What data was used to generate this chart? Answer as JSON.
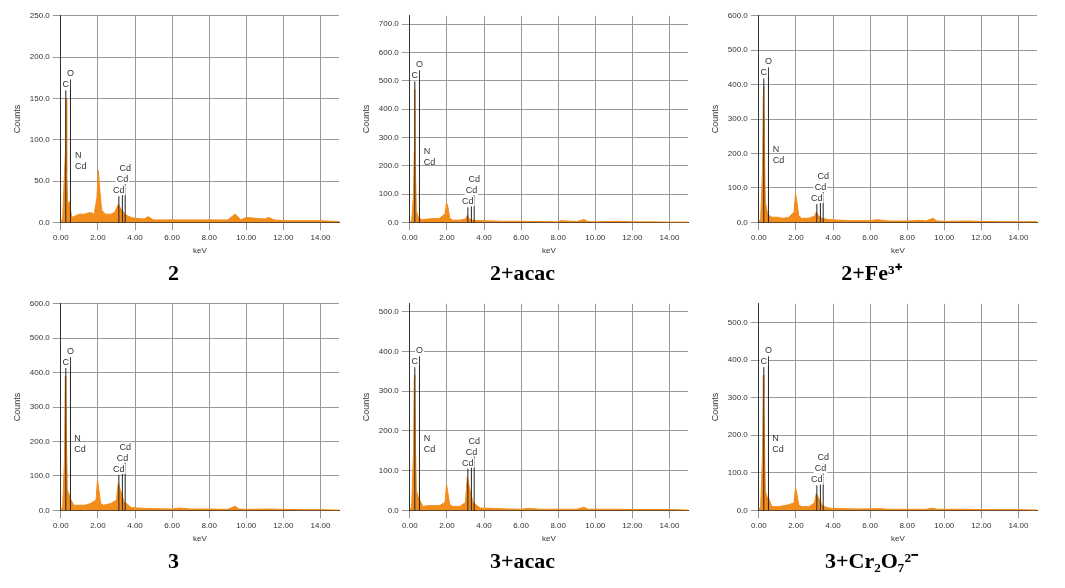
{
  "chart_data": [
    {
      "type": "area",
      "title": "2",
      "xlabel": "keV",
      "ylabel": "Counts",
      "color": "#f28c1a",
      "grid": true,
      "xlim": [
        0,
        15
      ],
      "ylim": [
        0,
        250
      ],
      "xticks": [
        {
          "value": 0,
          "label": "0.00"
        },
        {
          "value": 2,
          "label": "2.00"
        },
        {
          "value": 4,
          "label": "4.00"
        },
        {
          "value": 6,
          "label": "6.00"
        },
        {
          "value": 8,
          "label": "8.00"
        },
        {
          "value": 10,
          "label": "10.00"
        },
        {
          "value": 12,
          "label": "12.00"
        },
        {
          "value": 14,
          "label": "14.00"
        }
      ],
      "yticks": [
        {
          "value": 0,
          "label": "0.0"
        },
        {
          "value": 50,
          "label": "50.0"
        },
        {
          "value": 100,
          "label": "100.0"
        },
        {
          "value": 150,
          "label": "150.0"
        },
        {
          "value": 200,
          "label": "200.0"
        },
        {
          "value": 250,
          "label": "250.0"
        }
      ],
      "x": [
        0,
        0.1,
        0.2,
        0.25,
        0.28,
        0.32,
        0.38,
        0.45,
        0.52,
        0.6,
        0.8,
        1.0,
        1.3,
        1.6,
        1.8,
        1.95,
        2.02,
        2.1,
        2.2,
        2.4,
        2.7,
        2.9,
        3.1,
        3.2,
        3.3,
        3.45,
        3.6,
        3.8,
        4.0,
        4.5,
        4.7,
        5.0,
        6.0,
        7.0,
        8.0,
        9.0,
        9.4,
        9.5,
        9.7,
        10.0,
        11.0,
        11.2,
        11.5,
        12.0,
        13.0,
        14.0,
        15.0
      ],
      "values": [
        0,
        5,
        60,
        85,
        150,
        60,
        20,
        25,
        15,
        6,
        8,
        10,
        10,
        12,
        10,
        30,
        63,
        40,
        15,
        10,
        10,
        12,
        22,
        18,
        15,
        10,
        8,
        6,
        5,
        4,
        7,
        3,
        3,
        3,
        3,
        3,
        10,
        8,
        3,
        6,
        4,
        6,
        3,
        2,
        2,
        2,
        1
      ],
      "annotations": [
        "N",
        "Cd"
      ],
      "ref_lines": [
        {
          "axis": "x",
          "value": 0.27,
          "label": "C"
        },
        {
          "axis": "x",
          "value": 0.52,
          "label": "O"
        },
        {
          "axis": "x",
          "value": 3.13,
          "label": "Cd"
        },
        {
          "axis": "x",
          "value": 3.32,
          "label": "Cd"
        },
        {
          "axis": "x",
          "value": 3.47,
          "label": "Cd"
        }
      ]
    },
    {
      "type": "area",
      "title": "2+acac",
      "xlabel": "keV",
      "ylabel": "Counts",
      "color": "#f28c1a",
      "grid": true,
      "xlim": [
        0,
        15
      ],
      "ylim": [
        0,
        730
      ],
      "xticks": [
        {
          "value": 0,
          "label": "0.00"
        },
        {
          "value": 2,
          "label": "2.00"
        },
        {
          "value": 4,
          "label": "4.00"
        },
        {
          "value": 6,
          "label": "6.00"
        },
        {
          "value": 8,
          "label": "8.00"
        },
        {
          "value": 10,
          "label": "10.00"
        },
        {
          "value": 12,
          "label": "12.00"
        },
        {
          "value": 14,
          "label": "14.00"
        }
      ],
      "yticks": [
        {
          "value": 0,
          "label": "0.0"
        },
        {
          "value": 100,
          "label": "100.0"
        },
        {
          "value": 200,
          "label": "200.0"
        },
        {
          "value": 300,
          "label": "300.0"
        },
        {
          "value": 400,
          "label": "400.0"
        },
        {
          "value": 500,
          "label": "500.0"
        },
        {
          "value": 600,
          "label": "600.0"
        },
        {
          "value": 700,
          "label": "700.0"
        }
      ],
      "x": [
        0,
        0.1,
        0.2,
        0.24,
        0.27,
        0.3,
        0.35,
        0.45,
        0.55,
        0.7,
        1.0,
        1.3,
        1.6,
        1.9,
        1.98,
        2.05,
        2.15,
        2.3,
        2.7,
        3.0,
        3.1,
        3.2,
        3.4,
        3.8,
        4.5,
        5.0,
        6.0,
        7.0,
        8.0,
        8.1,
        9.0,
        9.4,
        9.6,
        10.0,
        11.2,
        12.0,
        13.0,
        14.0,
        15.0
      ],
      "values": [
        0,
        5,
        100,
        250,
        470,
        200,
        40,
        20,
        12,
        10,
        12,
        14,
        14,
        30,
        70,
        55,
        15,
        8,
        8,
        12,
        25,
        12,
        8,
        6,
        5,
        4,
        4,
        3,
        2,
        6,
        3,
        10,
        3,
        2,
        4,
        2,
        2,
        1,
        1
      ],
      "annotations": [
        "N",
        "Cd"
      ],
      "ref_lines": [
        {
          "axis": "x",
          "value": 0.27,
          "label": "C"
        },
        {
          "axis": "x",
          "value": 0.52,
          "label": "O"
        },
        {
          "axis": "x",
          "value": 3.13,
          "label": "Cd"
        },
        {
          "axis": "x",
          "value": 3.32,
          "label": "Cd"
        },
        {
          "axis": "x",
          "value": 3.47,
          "label": "Cd"
        }
      ]
    },
    {
      "type": "area",
      "title": "2+Fe³⁺",
      "xlabel": "keV",
      "ylabel": "Counts",
      "color": "#f28c1a",
      "grid": true,
      "xlim": [
        0,
        15
      ],
      "ylim": [
        0,
        600
      ],
      "xticks": [
        {
          "value": 0,
          "label": "0.00"
        },
        {
          "value": 2,
          "label": "2.00"
        },
        {
          "value": 4,
          "label": "4.00"
        },
        {
          "value": 6,
          "label": "6.00"
        },
        {
          "value": 8,
          "label": "8.00"
        },
        {
          "value": 10,
          "label": "10.00"
        },
        {
          "value": 12,
          "label": "12.00"
        },
        {
          "value": 14,
          "label": "14.00"
        }
      ],
      "yticks": [
        {
          "value": 0,
          "label": "0.0"
        },
        {
          "value": 100,
          "label": "100.0"
        },
        {
          "value": 200,
          "label": "200.0"
        },
        {
          "value": 300,
          "label": "300.0"
        },
        {
          "value": 400,
          "label": "400.0"
        },
        {
          "value": 500,
          "label": "500.0"
        },
        {
          "value": 600,
          "label": "600.0"
        }
      ],
      "x": [
        0,
        0.1,
        0.2,
        0.24,
        0.27,
        0.3,
        0.35,
        0.45,
        0.55,
        0.7,
        1.0,
        1.3,
        1.6,
        1.9,
        1.98,
        2.05,
        2.15,
        2.3,
        2.7,
        3.0,
        3.1,
        3.2,
        3.4,
        3.8,
        4.5,
        5.0,
        6.0,
        6.4,
        7.0,
        8.0,
        8.7,
        9.0,
        9.4,
        9.6,
        10.0,
        11.2,
        12.0,
        13.0,
        14.0,
        15.0
      ],
      "values": [
        0,
        10,
        150,
        370,
        395,
        230,
        60,
        30,
        20,
        15,
        15,
        12,
        14,
        30,
        85,
        60,
        20,
        12,
        12,
        18,
        30,
        20,
        12,
        8,
        6,
        5,
        5,
        8,
        4,
        4,
        6,
        4,
        12,
        4,
        3,
        4,
        3,
        2,
        2,
        2
      ],
      "annotations": [
        "N",
        "Cd"
      ],
      "ref_lines": [
        {
          "axis": "x",
          "value": 0.27,
          "label": "C"
        },
        {
          "axis": "x",
          "value": 0.52,
          "label": "O"
        },
        {
          "axis": "x",
          "value": 3.13,
          "label": "Cd"
        },
        {
          "axis": "x",
          "value": 3.32,
          "label": "Cd"
        },
        {
          "axis": "x",
          "value": 3.47,
          "label": "Cd"
        }
      ]
    },
    {
      "type": "area",
      "title": "3",
      "xlabel": "keV",
      "ylabel": "Counts",
      "color": "#f28c1a",
      "grid": true,
      "xlim": [
        0,
        15
      ],
      "ylim": [
        0,
        600
      ],
      "xticks": [
        {
          "value": 0,
          "label": "0.00"
        },
        {
          "value": 2,
          "label": "2.00"
        },
        {
          "value": 4,
          "label": "4.00"
        },
        {
          "value": 6,
          "label": "6.00"
        },
        {
          "value": 8,
          "label": "8.00"
        },
        {
          "value": 10,
          "label": "10.00"
        },
        {
          "value": 12,
          "label": "12.00"
        },
        {
          "value": 14,
          "label": "14.00"
        }
      ],
      "yticks": [
        {
          "value": 0,
          "label": "0.0"
        },
        {
          "value": 100,
          "label": "100.0"
        },
        {
          "value": 200,
          "label": "200.0"
        },
        {
          "value": 300,
          "label": "300.0"
        },
        {
          "value": 400,
          "label": "400.0"
        },
        {
          "value": 500,
          "label": "500.0"
        },
        {
          "value": 600,
          "label": "600.0"
        }
      ],
      "x": [
        0,
        0.1,
        0.2,
        0.24,
        0.27,
        0.3,
        0.35,
        0.45,
        0.55,
        0.7,
        1.0,
        1.3,
        1.6,
        1.9,
        1.98,
        2.05,
        2.15,
        2.3,
        2.7,
        3.0,
        3.1,
        3.2,
        3.3,
        3.4,
        3.55,
        3.8,
        4.5,
        5.0,
        6.0,
        6.4,
        7.0,
        8.0,
        9.0,
        9.4,
        9.6,
        10.0,
        11.2,
        12.0,
        13.0,
        14.0,
        15.0
      ],
      "values": [
        0,
        10,
        150,
        390,
        380,
        220,
        60,
        45,
        30,
        15,
        15,
        15,
        20,
        30,
        90,
        60,
        20,
        15,
        20,
        30,
        80,
        60,
        45,
        25,
        20,
        8,
        6,
        5,
        4,
        7,
        4,
        4,
        3,
        12,
        4,
        3,
        4,
        3,
        2,
        2,
        1
      ],
      "annotations": [
        "N",
        "Cd"
      ],
      "ref_lines": [
        {
          "axis": "x",
          "value": 0.27,
          "label": "C"
        },
        {
          "axis": "x",
          "value": 0.52,
          "label": "O"
        },
        {
          "axis": "x",
          "value": 3.13,
          "label": "Cd"
        },
        {
          "axis": "x",
          "value": 3.32,
          "label": "Cd"
        },
        {
          "axis": "x",
          "value": 3.47,
          "label": "Cd"
        }
      ]
    },
    {
      "type": "area",
      "title": "3+acac",
      "xlabel": "keV",
      "ylabel": "Counts",
      "color": "#f28c1a",
      "grid": true,
      "xlim": [
        0,
        15
      ],
      "ylim": [
        0,
        520
      ],
      "xticks": [
        {
          "value": 0,
          "label": "0.00"
        },
        {
          "value": 2,
          "label": "2.00"
        },
        {
          "value": 4,
          "label": "4.00"
        },
        {
          "value": 6,
          "label": "6.00"
        },
        {
          "value": 8,
          "label": "8.00"
        },
        {
          "value": 10,
          "label": "10.00"
        },
        {
          "value": 12,
          "label": "12.00"
        },
        {
          "value": 14,
          "label": "14.00"
        }
      ],
      "yticks": [
        {
          "value": 0,
          "label": "0.0"
        },
        {
          "value": 100,
          "label": "100.0"
        },
        {
          "value": 200,
          "label": "200.0"
        },
        {
          "value": 300,
          "label": "300.0"
        },
        {
          "value": 400,
          "label": "400.0"
        },
        {
          "value": 500,
          "label": "500.0"
        }
      ],
      "x": [
        0,
        0.1,
        0.2,
        0.24,
        0.27,
        0.3,
        0.35,
        0.45,
        0.55,
        0.7,
        1.0,
        1.3,
        1.6,
        1.9,
        1.98,
        2.05,
        2.15,
        2.3,
        2.7,
        3.0,
        3.1,
        3.2,
        3.3,
        3.4,
        3.55,
        3.8,
        4.5,
        5.0,
        6.0,
        6.4,
        7.0,
        8.0,
        9.0,
        9.4,
        9.6,
        10.0,
        11.2,
        12.0,
        13.0,
        14.0,
        15.0
      ],
      "values": [
        0,
        10,
        150,
        330,
        340,
        180,
        50,
        35,
        25,
        10,
        12,
        12,
        12,
        20,
        65,
        45,
        15,
        10,
        10,
        20,
        85,
        60,
        40,
        20,
        15,
        6,
        5,
        4,
        3,
        5,
        3,
        3,
        3,
        8,
        3,
        3,
        3,
        2,
        2,
        2,
        1
      ],
      "annotations": [
        "N",
        "Cd"
      ],
      "ref_lines": [
        {
          "axis": "x",
          "value": 0.27,
          "label": "C"
        },
        {
          "axis": "x",
          "value": 0.52,
          "label": "O"
        },
        {
          "axis": "x",
          "value": 3.13,
          "label": "Cd"
        },
        {
          "axis": "x",
          "value": 3.32,
          "label": "Cd"
        },
        {
          "axis": "x",
          "value": 3.47,
          "label": "Cd"
        }
      ]
    },
    {
      "type": "area",
      "title": "3+Cr₂O₇²⁻",
      "xlabel": "keV",
      "ylabel": "Counts",
      "color": "#f28c1a",
      "grid": true,
      "xlim": [
        0,
        15
      ],
      "ylim": [
        0,
        550
      ],
      "xticks": [
        {
          "value": 0,
          "label": "0.00"
        },
        {
          "value": 2,
          "label": "2.00"
        },
        {
          "value": 4,
          "label": "4.00"
        },
        {
          "value": 6,
          "label": "6.00"
        },
        {
          "value": 8,
          "label": "8.00"
        },
        {
          "value": 10,
          "label": "10.00"
        },
        {
          "value": 12,
          "label": "12.00"
        },
        {
          "value": 14,
          "label": "14.00"
        }
      ],
      "yticks": [
        {
          "value": 0,
          "label": "0.0"
        },
        {
          "value": 100,
          "label": "100.0"
        },
        {
          "value": 200,
          "label": "200.0"
        },
        {
          "value": 300,
          "label": "300.0"
        },
        {
          "value": 400,
          "label": "400.0"
        },
        {
          "value": 500,
          "label": "500.0"
        }
      ],
      "x": [
        0,
        0.1,
        0.2,
        0.24,
        0.27,
        0.3,
        0.35,
        0.45,
        0.55,
        0.7,
        1.0,
        1.3,
        1.6,
        1.9,
        1.98,
        2.05,
        2.15,
        2.3,
        2.7,
        3.0,
        3.1,
        3.2,
        3.3,
        3.4,
        3.55,
        3.8,
        4.5,
        5.0,
        6.0,
        6.4,
        7.0,
        8.0,
        9.0,
        9.4,
        9.6,
        10.0,
        11.2,
        12.0,
        13.0,
        14.0,
        15.0
      ],
      "values": [
        0,
        10,
        150,
        360,
        310,
        200,
        50,
        35,
        30,
        10,
        10,
        12,
        15,
        20,
        60,
        45,
        15,
        10,
        10,
        20,
        45,
        35,
        25,
        15,
        10,
        6,
        5,
        4,
        4,
        5,
        3,
        3,
        3,
        6,
        3,
        3,
        3,
        2,
        2,
        2,
        1
      ],
      "annotations": [
        "N",
        "Cd"
      ],
      "ref_lines": [
        {
          "axis": "x",
          "value": 0.27,
          "label": "C"
        },
        {
          "axis": "x",
          "value": 0.52,
          "label": "O"
        },
        {
          "axis": "x",
          "value": 3.13,
          "label": "Cd"
        },
        {
          "axis": "x",
          "value": 3.32,
          "label": "Cd"
        },
        {
          "axis": "x",
          "value": 3.47,
          "label": "Cd"
        }
      ]
    }
  ]
}
